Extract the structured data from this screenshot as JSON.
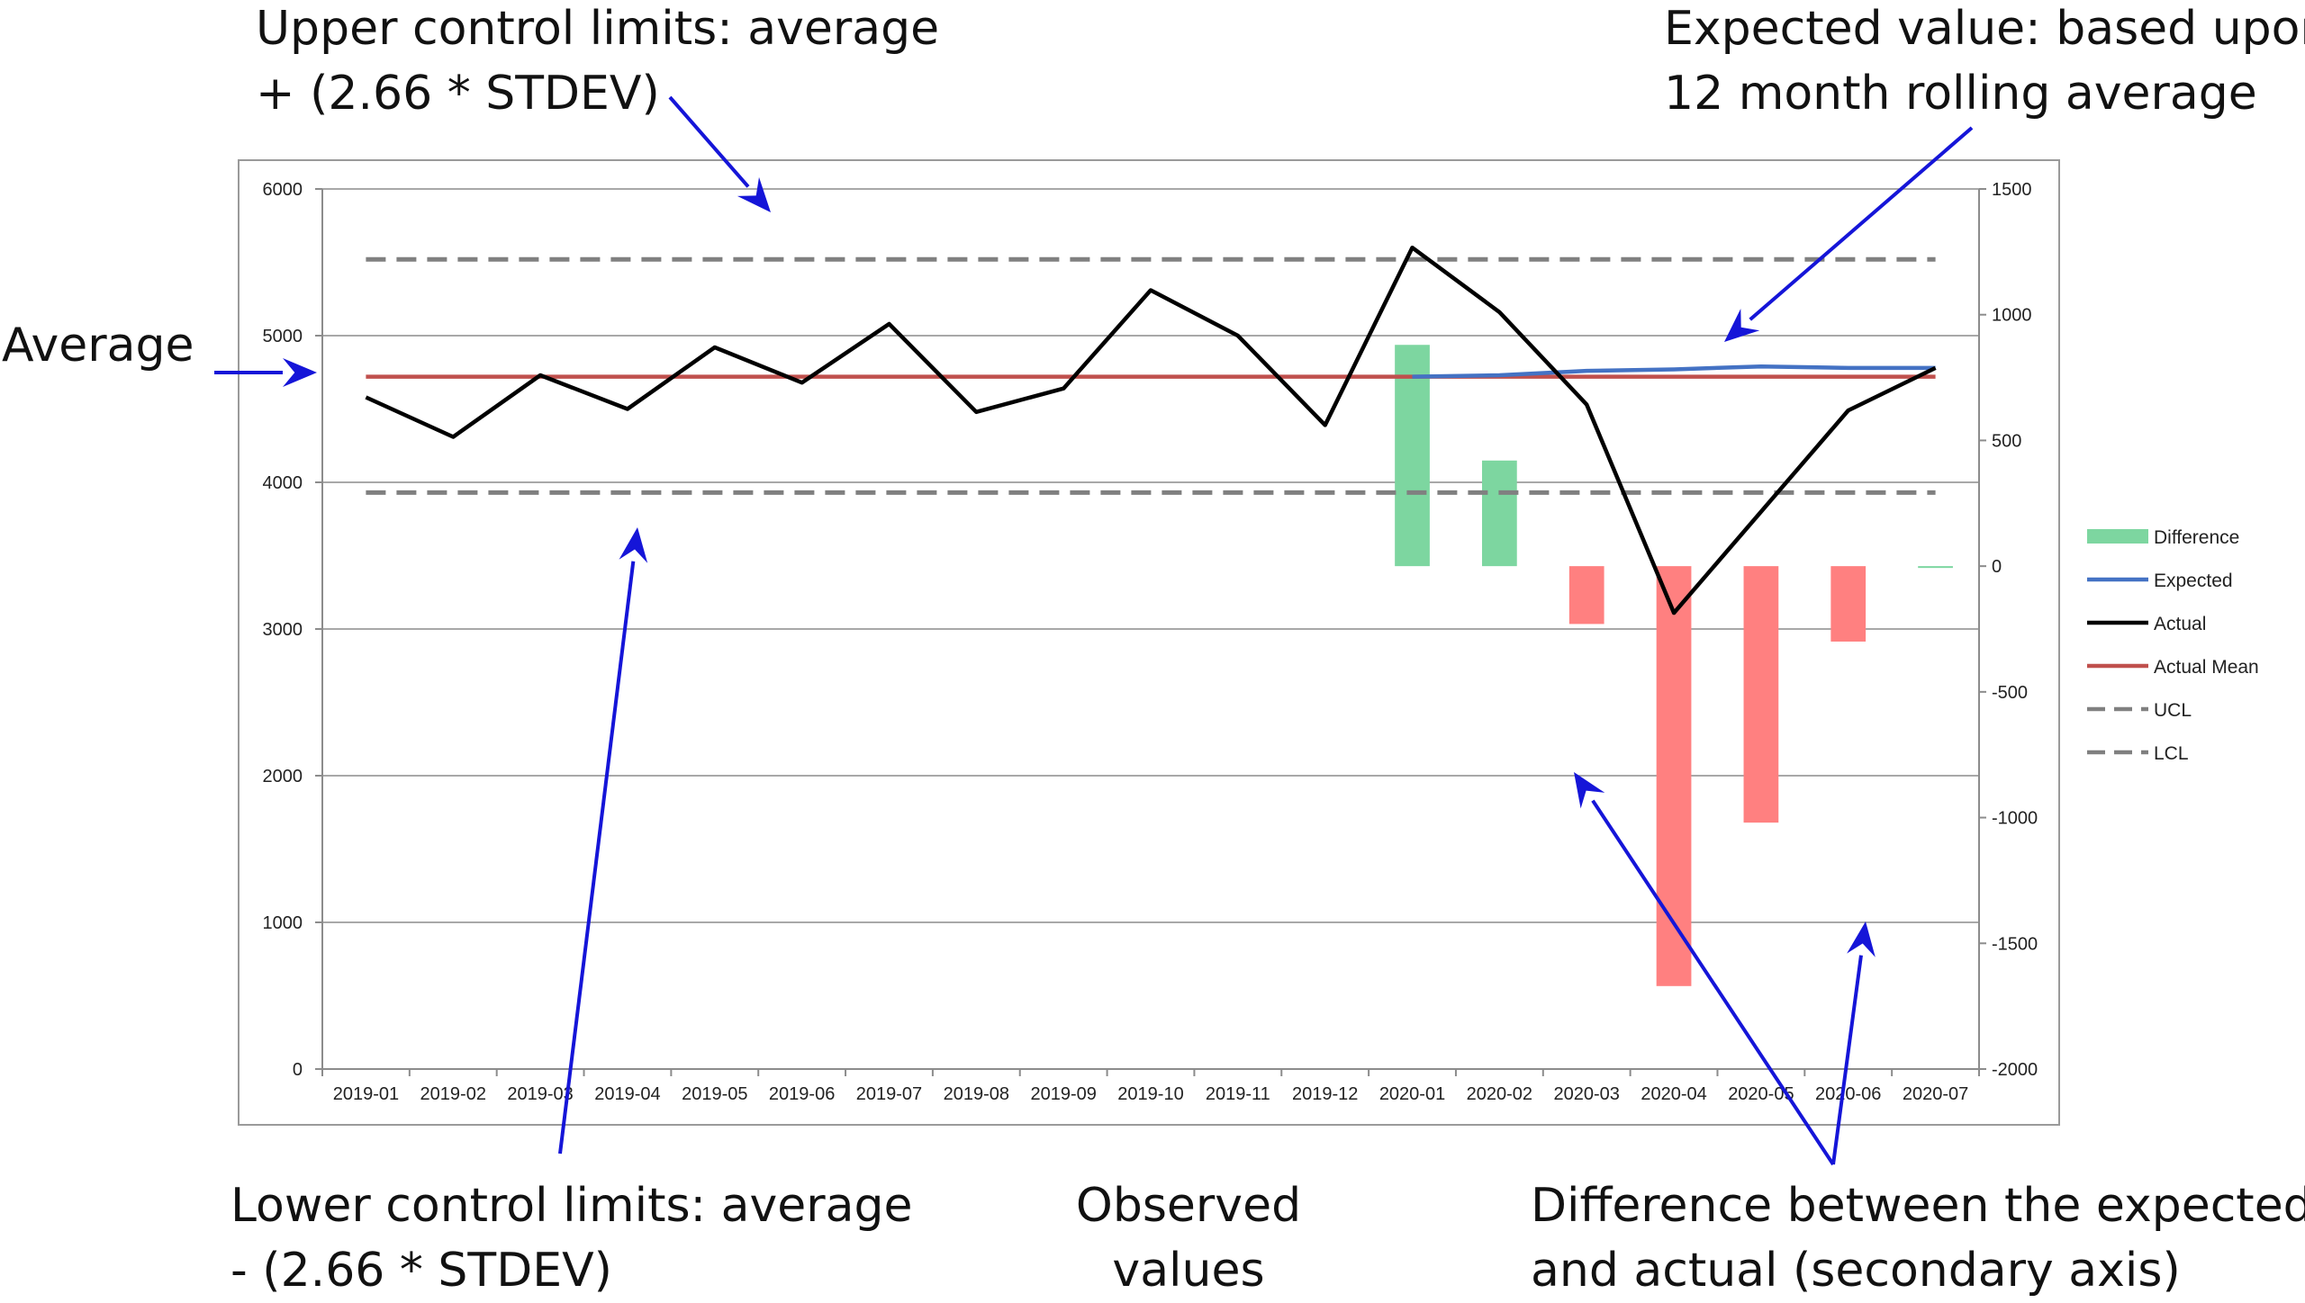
{
  "annotations": {
    "ucl": [
      "Upper control limits: average",
      "+ (2.66 * STDEV)"
    ],
    "expected": [
      "Expected value: based upon",
      "12 month rolling average"
    ],
    "average": "Average",
    "lcl": [
      "Lower control limits: average",
      "- (2.66 * STDEV)"
    ],
    "observed": [
      "Observed",
      "values"
    ],
    "difference": [
      "Difference between the expected",
      "and actual (secondary axis)"
    ]
  },
  "chart_data": {
    "type": "line",
    "categories": [
      "2019-01",
      "2019-02",
      "2019-03",
      "2019-04",
      "2019-05",
      "2019-06",
      "2019-07",
      "2019-08",
      "2019-09",
      "2019-10",
      "2019-11",
      "2019-12",
      "2020-01",
      "2020-02",
      "2020-03",
      "2020-04",
      "2020-05",
      "2020-06",
      "2020-07"
    ],
    "ylim": [
      0,
      6000
    ],
    "yticks": [
      0,
      1000,
      2000,
      3000,
      4000,
      5000,
      6000
    ],
    "y2lim": [
      -2000,
      1500
    ],
    "y2ticks": [
      -2000,
      -1500,
      -1000,
      -500,
      0,
      500,
      1000,
      1500
    ],
    "grid": true,
    "legend_position": "right",
    "series": [
      {
        "name": "Difference",
        "type": "bar",
        "axis": "secondary",
        "color": "#7dd6a0",
        "negative_color": "#ff8080",
        "values": [
          null,
          null,
          null,
          null,
          null,
          null,
          null,
          null,
          null,
          null,
          null,
          null,
          880,
          420,
          -230,
          -1670,
          -1020,
          -300,
          0
        ]
      },
      {
        "name": "Expected",
        "type": "line",
        "axis": "primary",
        "color": "#4472c4",
        "values": [
          null,
          null,
          null,
          null,
          null,
          null,
          null,
          null,
          null,
          null,
          null,
          null,
          4720,
          4730,
          4760,
          4770,
          4790,
          4780,
          4780
        ]
      },
      {
        "name": "Actual",
        "type": "line",
        "axis": "primary",
        "color": "#000000",
        "values": [
          4580,
          4310,
          4730,
          4500,
          4920,
          4680,
          5080,
          4480,
          4640,
          5310,
          5000,
          4390,
          5600,
          5160,
          4530,
          3110,
          3800,
          4490,
          4780
        ]
      },
      {
        "name": "Actual Mean",
        "type": "line",
        "axis": "primary",
        "color": "#c0504d",
        "values": [
          4720,
          4720,
          4720,
          4720,
          4720,
          4720,
          4720,
          4720,
          4720,
          4720,
          4720,
          4720,
          4720,
          4720,
          4720,
          4720,
          4720,
          4720,
          4720
        ]
      },
      {
        "name": "UCL",
        "type": "line",
        "axis": "primary",
        "color": "#808080",
        "dashed": true,
        "values": [
          5520,
          5520,
          5520,
          5520,
          5520,
          5520,
          5520,
          5520,
          5520,
          5520,
          5520,
          5520,
          5520,
          5520,
          5520,
          5520,
          5520,
          5520,
          5520
        ]
      },
      {
        "name": "LCL",
        "type": "line",
        "axis": "primary",
        "color": "#808080",
        "dashed": true,
        "values": [
          3930,
          3930,
          3930,
          3930,
          3930,
          3930,
          3930,
          3930,
          3930,
          3930,
          3930,
          3930,
          3930,
          3930,
          3930,
          3930,
          3930,
          3930,
          3930
        ]
      }
    ]
  }
}
